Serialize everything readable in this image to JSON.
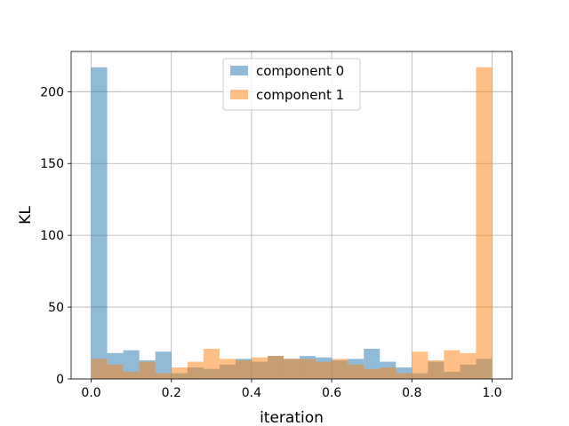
{
  "chart_data": {
    "type": "bar",
    "title": "",
    "xlabel": "iteration",
    "ylabel": "KL",
    "xlim": [
      -0.05,
      1.05
    ],
    "ylim": [
      0,
      228
    ],
    "xticks": [
      0.0,
      0.2,
      0.4,
      0.6,
      0.8,
      1.0
    ],
    "xtick_labels": [
      "0.0",
      "0.2",
      "0.4",
      "0.6",
      "0.8",
      "1.0"
    ],
    "yticks": [
      0,
      50,
      100,
      150,
      200
    ],
    "ytick_labels": [
      "0",
      "50",
      "100",
      "150",
      "200"
    ],
    "grid": true,
    "legend_position": "upper center",
    "bin_edges": [
      0.0,
      0.04,
      0.08,
      0.12,
      0.16,
      0.2,
      0.24,
      0.28,
      0.32,
      0.36,
      0.4,
      0.44,
      0.48,
      0.52,
      0.56,
      0.6,
      0.64,
      0.68,
      0.72,
      0.76,
      0.8,
      0.84,
      0.88,
      0.92,
      0.96,
      1.0
    ],
    "series": [
      {
        "name": "component 0",
        "color": "#1f77b4",
        "alpha": 0.5,
        "values": [
          217,
          18,
          20,
          13,
          19,
          4,
          8,
          7,
          10,
          14,
          12,
          16,
          14,
          16,
          15,
          13,
          14,
          21,
          12,
          8,
          4,
          12,
          5,
          10,
          14
        ]
      },
      {
        "name": "component 1",
        "color": "#ff7f0e",
        "alpha": 0.5,
        "values": [
          14,
          10,
          5,
          12,
          4,
          8,
          12,
          21,
          14,
          13,
          15,
          16,
          14,
          14,
          12,
          14,
          10,
          7,
          8,
          4,
          19,
          13,
          20,
          18,
          217
        ]
      }
    ]
  }
}
